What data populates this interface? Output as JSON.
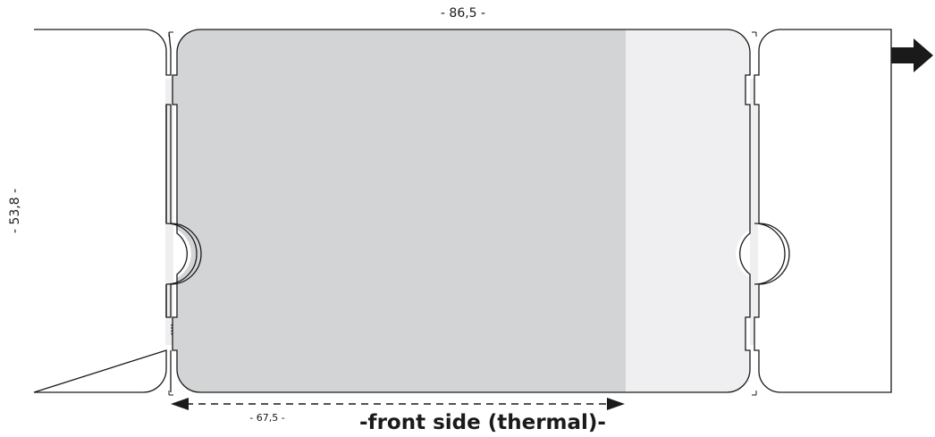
{
  "dimensions": {
    "width_label": "- 86,5 -",
    "height_label": "- 53,8 -",
    "print_area_label": "- 67,5 -"
  },
  "caption": "-front side (thermal)-",
  "colors": {
    "print_area": "#d3d4d6",
    "strip_area": "#efeff1",
    "outline": "#1a1a1a",
    "feed_arrow": "#1a1a1a"
  },
  "icons": {
    "feed_direction": "arrow-right-icon"
  }
}
